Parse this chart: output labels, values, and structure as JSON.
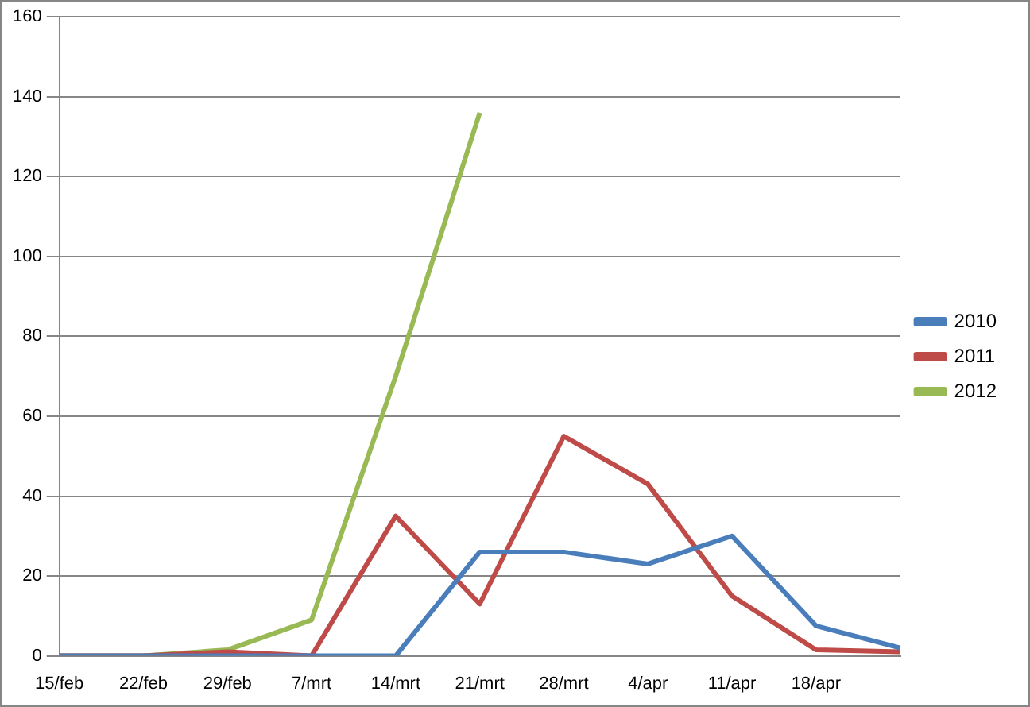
{
  "chart_data": {
    "type": "line",
    "categories": [
      "15/feb",
      "22/feb",
      "29/feb",
      "7/mrt",
      "14/mrt",
      "21/mrt",
      "28/mrt",
      "4/apr",
      "11/apr",
      "18/apr",
      null
    ],
    "series": [
      {
        "name": "2010",
        "color": "#4a7ebb",
        "values": [
          0,
          0,
          0,
          0,
          0,
          26,
          26,
          23,
          30,
          7.5,
          2
        ]
      },
      {
        "name": "2011",
        "color": "#be4b48",
        "values": [
          0,
          0,
          1,
          0,
          35,
          13,
          55,
          43,
          15,
          1.5,
          1
        ]
      },
      {
        "name": "2012",
        "color": "#98b954",
        "values": [
          0,
          0,
          1.5,
          9,
          70,
          136,
          null,
          null,
          null,
          null,
          null
        ]
      }
    ],
    "ylim": [
      0,
      160
    ],
    "yticks": [
      0,
      20,
      40,
      60,
      80,
      100,
      120,
      140,
      160
    ],
    "grid": "y",
    "legend": "right",
    "marker": "none",
    "line_style": "solid"
  }
}
